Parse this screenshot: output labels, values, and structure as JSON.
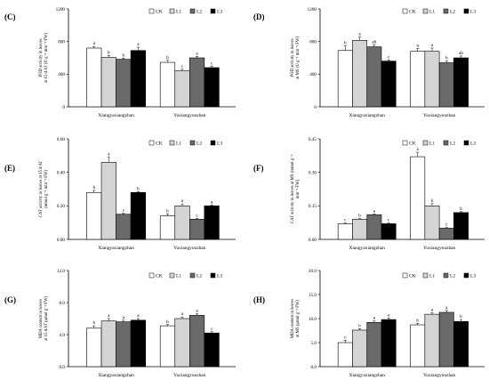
{
  "legend": [
    "CK",
    "L1",
    "L2",
    "L3"
  ],
  "series_colors": [
    "#ffffff",
    "#d4d4d4",
    "#6a6a6a",
    "#000000"
  ],
  "chart_data": [
    {
      "type": "bar",
      "panel": "(C)",
      "ylabel_lines": [
        "POD activity in leaves",
        "at 15 d AT (U g⁻¹ min⁻¹ FW)"
      ],
      "ylim": [
        0,
        1200
      ],
      "yticks": [
        "0",
        "400",
        "800",
        "1200"
      ],
      "categories": [
        "Xiangyaxiangzhan",
        "Yuxiangyouzhan"
      ],
      "series": [
        {
          "name": "CK",
          "values": [
            720,
            545
          ]
        },
        {
          "name": "L1",
          "values": [
            605,
            440
          ]
        },
        {
          "name": "L2",
          "values": [
            582,
            600
          ]
        },
        {
          "name": "L3",
          "values": [
            690,
            480
          ]
        }
      ],
      "errors": [
        [
          20,
          25
        ],
        [
          22,
          20
        ],
        [
          15,
          18
        ],
        [
          40,
          18
        ]
      ],
      "sig": [
        [
          "a",
          "b",
          "b",
          "a"
        ],
        [
          "b",
          "c",
          "a",
          "c"
        ]
      ]
    },
    {
      "type": "bar",
      "panel": "(D)",
      "ylabel_lines": [
        "POD activity in leaves",
        "at MS (U g⁻¹ min⁻¹ FW)"
      ],
      "ylim": [
        0,
        1200
      ],
      "yticks": [
        "0",
        "400",
        "800",
        "1200"
      ],
      "categories": [
        "Xiangyaxiangzhan",
        "Yuxiangyouzhan"
      ],
      "series": [
        {
          "name": "CK",
          "values": [
            690,
            680
          ]
        },
        {
          "name": "L1",
          "values": [
            815,
            680
          ]
        },
        {
          "name": "L2",
          "values": [
            735,
            540
          ]
        },
        {
          "name": "L3",
          "values": [
            560,
            600
          ]
        }
      ],
      "errors": [
        [
          55,
          35
        ],
        [
          40,
          40
        ],
        [
          25,
          22
        ],
        [
          15,
          22
        ]
      ],
      "sig": [
        [
          "b",
          "a",
          "ab",
          "c"
        ],
        [
          "a",
          "a",
          "b",
          "ab"
        ]
      ]
    },
    {
      "type": "bar",
      "panel": "(E)",
      "ylabel_lines": [
        "CAT activity in leaves at 15 d AT",
        "(mmol g⁻¹ min⁻¹ FW)"
      ],
      "ylim": [
        0,
        0.6
      ],
      "yticks": [
        "0.00",
        "0.20",
        "0.40",
        "0.60"
      ],
      "categories": [
        "Xiangyaxiangzhan",
        "Yuxiangyouzhan"
      ],
      "series": [
        {
          "name": "CK",
          "values": [
            0.28,
            0.14
          ]
        },
        {
          "name": "L1",
          "values": [
            0.46,
            0.2
          ]
        },
        {
          "name": "L2",
          "values": [
            0.15,
            0.12
          ]
        },
        {
          "name": "L3",
          "values": [
            0.28,
            0.2
          ]
        }
      ],
      "errors": [
        [
          0.012,
          0.012
        ],
        [
          0.03,
          0.012
        ],
        [
          0.005,
          0.005
        ],
        [
          0.005,
          0.005
        ]
      ],
      "sig": [
        [
          "b",
          "a",
          "c",
          "b"
        ],
        [
          "b",
          "a",
          "c",
          "a"
        ]
      ]
    },
    {
      "type": "bar",
      "panel": "(F)",
      "ylabel_lines": [
        "CAT activity in leaves at MS (mmol g⁻¹",
        "min⁻¹ FW)"
      ],
      "ylim": [
        0,
        0.45
      ],
      "yticks": [
        "0.00",
        "0.15",
        "0.30",
        "0.45"
      ],
      "categories": [
        "Xiangyaxiangzhan",
        "Yuxiangyouzhan"
      ],
      "series": [
        {
          "name": "CK",
          "values": [
            0.07,
            0.37
          ]
        },
        {
          "name": "L1",
          "values": [
            0.09,
            0.15
          ]
        },
        {
          "name": "L2",
          "values": [
            0.11,
            0.05
          ]
        },
        {
          "name": "L3",
          "values": [
            0.07,
            0.12
          ]
        }
      ],
      "errors": [
        [
          0.003,
          0.02
        ],
        [
          0.003,
          0.01
        ],
        [
          0.004,
          0.003
        ],
        [
          0.003,
          0.004
        ]
      ],
      "sig": [
        [
          "c",
          "b",
          "a",
          "c"
        ],
        [
          "a",
          "b",
          "c",
          "b"
        ]
      ]
    },
    {
      "type": "bar",
      "panel": "(G)",
      "ylabel_lines": [
        "MDA content in leaves",
        "at 15 d AT (μmol g⁻¹ FW)"
      ],
      "ylim": [
        0,
        12
      ],
      "yticks": [
        "0.0",
        "4.0",
        "8.0",
        "12.0"
      ],
      "categories": [
        "Xiangyaxiangzhan",
        "Yuxiangyouzhan"
      ],
      "series": [
        {
          "name": "CK",
          "values": [
            4.8,
            5.1
          ]
        },
        {
          "name": "L1",
          "values": [
            5.7,
            6.0
          ]
        },
        {
          "name": "L2",
          "values": [
            5.6,
            6.4
          ]
        },
        {
          "name": "L3",
          "values": [
            5.8,
            4.2
          ]
        }
      ],
      "errors": [
        [
          0.3,
          0.15
        ],
        [
          0.3,
          0.2
        ],
        [
          0.2,
          0.2
        ],
        [
          0.2,
          0.15
        ]
      ],
      "sig": [
        [
          "b",
          "a",
          "a",
          "a"
        ],
        [
          "b",
          "a",
          "a",
          "c"
        ]
      ]
    },
    {
      "type": "bar",
      "panel": "(H)",
      "ylabel_lines": [
        "MDA content in leaves",
        "at MS (μmol g⁻¹ FW)"
      ],
      "ylim": [
        0,
        20
      ],
      "yticks": [
        "0.0",
        "5.0",
        "10.0",
        "15.0",
        "20.0"
      ],
      "categories": [
        "Xiangyaxiangzhan",
        "Yuxiangyouzhan"
      ],
      "series": [
        {
          "name": "CK",
          "values": [
            5.0,
            8.7
          ]
        },
        {
          "name": "L1",
          "values": [
            7.6,
            10.9
          ]
        },
        {
          "name": "L2",
          "values": [
            9.2,
            11.3
          ]
        },
        {
          "name": "L3",
          "values": [
            9.8,
            9.4
          ]
        }
      ],
      "errors": [
        [
          0.5,
          0.3
        ],
        [
          0.3,
          0.3
        ],
        [
          0.3,
          0.4
        ],
        [
          0.3,
          0.4
        ]
      ],
      "sig": [
        [
          "c",
          "b",
          "a",
          "a"
        ],
        [
          "b",
          "a",
          "a",
          "b"
        ]
      ]
    }
  ]
}
